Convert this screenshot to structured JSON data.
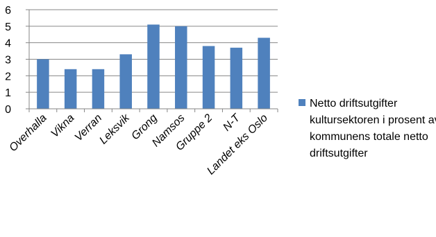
{
  "chart_data": {
    "type": "bar",
    "categories": [
      "Overhalla",
      "Vikna",
      "Verran",
      "Leksvik",
      "Grong",
      "Namsos",
      "Gruppe 2",
      "N-T",
      "Landet eks Oslo"
    ],
    "series": [
      {
        "name": "Netto driftsutgifter kultursektoren i prosent av kommunens  totale netto driftsutgifter",
        "values": [
          3.0,
          2.4,
          2.4,
          3.3,
          5.1,
          5.0,
          3.8,
          3.7,
          4.3
        ]
      }
    ],
    "ylim": [
      0,
      6
    ],
    "yticks": [
      0,
      1,
      2,
      3,
      4,
      5,
      6
    ],
    "grid": true,
    "legend": "right",
    "colors": {
      "bar": "#4f81bd",
      "grid": "#868686",
      "axis": "#868686"
    }
  }
}
